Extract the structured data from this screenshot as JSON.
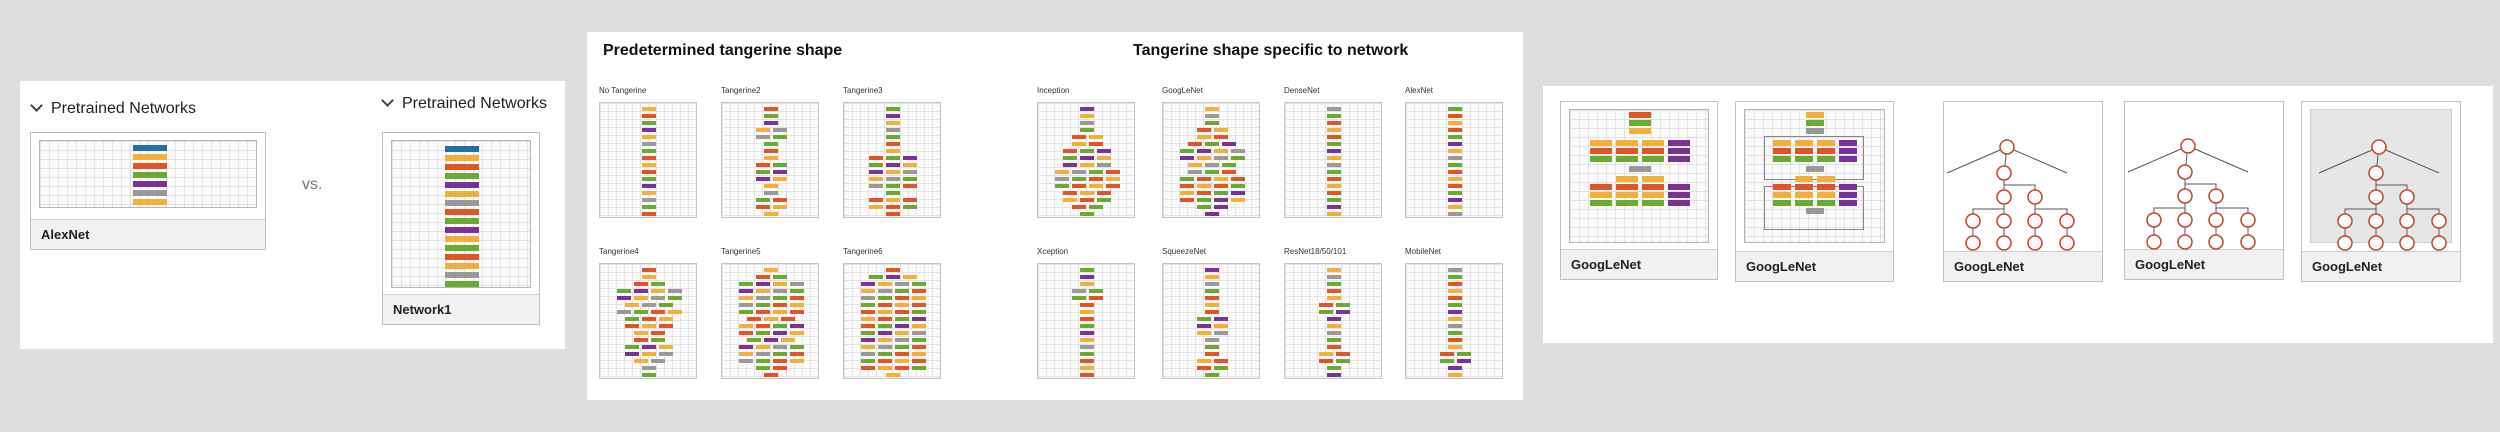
{
  "colors": {
    "blue": "#1f6fa8",
    "orange": "#f0b03a",
    "red": "#e05527",
    "green": "#6aaa33",
    "purple": "#7b3296",
    "gray": "#999999",
    "node_stroke": "#c9432a"
  },
  "left": {
    "header1": "Pretrained Networks",
    "header2": "Pretrained Networks",
    "card1_label": "AlexNet",
    "card2_label": "Network1",
    "vs": "vs."
  },
  "middle": {
    "title_left": "Predetermined tangerine shape",
    "title_right": "Tangerine shape specific to network",
    "labels": [
      "No Tangerine",
      "Tangerine2",
      "Tangerine3",
      "Inception",
      "GoogLeNet",
      "DenseNet",
      "AlexNet",
      "Tangerine4",
      "Tangerine5",
      "Tangerine6",
      "Xception",
      "SqueezeNet",
      "ResNet18/50/101",
      "MobileNet"
    ]
  },
  "right": {
    "labels": [
      "GoogLeNet",
      "GoogLeNet",
      "GoogLeNet",
      "GoogLeNet",
      "GoogLeNet"
    ]
  }
}
